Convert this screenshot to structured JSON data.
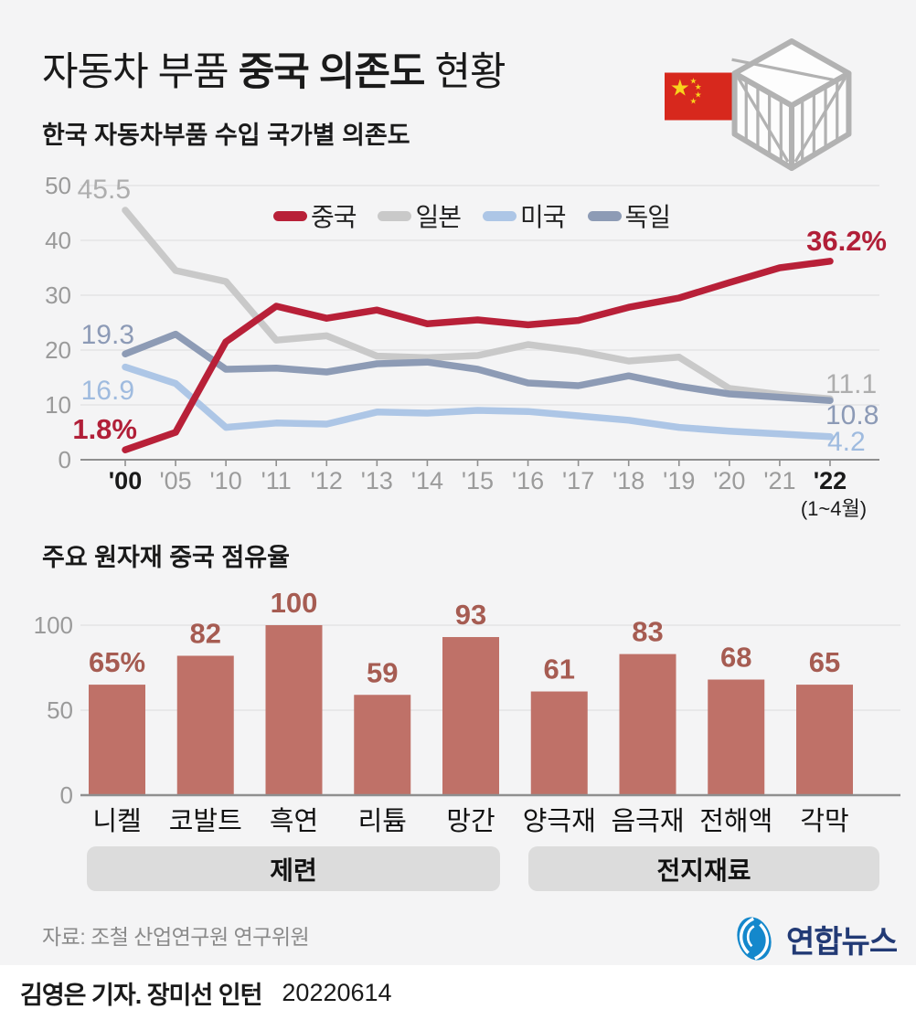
{
  "header": {
    "title_parts": [
      "자동차 부품 ",
      "중국 의존도",
      " 현황"
    ]
  },
  "chart_data": [
    {
      "type": "line",
      "title": "한국 자동차부품 수입 국가별 의존도",
      "x_labels": [
        "'00",
        "'05",
        "'10",
        "'11",
        "'12",
        "'13",
        "'14",
        "'15",
        "'16",
        "'17",
        "'18",
        "'19",
        "'20",
        "'21",
        "'22"
      ],
      "x_sub_label": "(1~4월)",
      "highlight_x_labels": [
        "'00",
        "'22"
      ],
      "ylim": [
        0,
        50
      ],
      "yticks": [
        0,
        10,
        20,
        30,
        40,
        50
      ],
      "grid": true,
      "legend_position": "top-center",
      "series": [
        {
          "name": "중국",
          "color": "#b82038",
          "label_color": "#b11f38",
          "values": [
            1.8,
            5.0,
            21.5,
            28.0,
            25.8,
            27.3,
            24.8,
            25.5,
            24.6,
            25.4,
            27.8,
            29.5,
            32.3,
            35.0,
            36.2
          ],
          "start_label": "1.8%",
          "end_label": "36.2%"
        },
        {
          "name": "일본",
          "color": "#c9c9c9",
          "label_color": "#aeaeae",
          "values": [
            45.5,
            34.5,
            32.5,
            21.8,
            22.6,
            18.9,
            18.6,
            19.0,
            21.0,
            19.8,
            18.0,
            18.7,
            13.0,
            11.9,
            11.1
          ],
          "start_label": "45.5",
          "end_label": "11.1"
        },
        {
          "name": "미국",
          "color": "#adc6e6",
          "label_color": "#9fbbdf",
          "values": [
            16.9,
            13.9,
            5.9,
            6.7,
            6.5,
            8.7,
            8.5,
            9.0,
            8.8,
            8.0,
            7.2,
            5.9,
            5.2,
            4.7,
            4.2
          ],
          "start_label": "16.9",
          "end_label": "4.2"
        },
        {
          "name": "독일",
          "color": "#8d9bb5",
          "label_color": "#8c9ab6",
          "values": [
            19.3,
            22.9,
            16.5,
            16.7,
            16.0,
            17.5,
            17.8,
            16.5,
            14.0,
            13.5,
            15.3,
            13.4,
            12.0,
            11.4,
            10.8
          ],
          "start_label": "19.3",
          "end_label": "10.8"
        }
      ]
    },
    {
      "type": "bar",
      "title": "주요 원자재 중국 점유율",
      "categories": [
        "니켈",
        "코발트",
        "흑연",
        "리튬",
        "망간",
        "양극재",
        "음극재",
        "전해액",
        "각막"
      ],
      "values": [
        65,
        82,
        100,
        59,
        93,
        61,
        83,
        68,
        65
      ],
      "value_labels": [
        "65%",
        "82",
        "100",
        "59",
        "93",
        "61",
        "83",
        "68",
        "65"
      ],
      "bar_color": "#bf7168",
      "value_label_color": "#a65c52",
      "ylim": [
        0,
        100
      ],
      "yticks": [
        0,
        50,
        100
      ],
      "grid": true,
      "groups": [
        {
          "label": "제련",
          "categories": [
            "니켈",
            "코발트",
            "흑연",
            "리튬",
            "망간"
          ]
        },
        {
          "label": "전지재료",
          "categories": [
            "양극재",
            "음극재",
            "전해액",
            "각막"
          ]
        }
      ]
    }
  ],
  "icons": {
    "flag": "china-flag-icon",
    "crate": "shipping-crate-icon",
    "logo": "yonhap-logo-icon"
  },
  "source": {
    "label": "자료: 조철 산업연구원 연구위원"
  },
  "logo": {
    "name": "연합뉴스"
  },
  "footer": {
    "byline": "김영은 기자. 장미선 인턴",
    "date": "20220614"
  },
  "colors": {
    "background": "#f4f4f5",
    "footer_background": "#ffffff",
    "gridline": "#e3e3e5",
    "axis": "#8f8f8f",
    "x_label_gray": "#9b9b9b",
    "x_label_dark": "#1a1a1a",
    "group_pill": "#dcdcdc",
    "logo_blue": "#1488cc",
    "logo_navy": "#223a75",
    "flag_red": "#d7281d",
    "flag_yellow": "#f8d31c"
  }
}
